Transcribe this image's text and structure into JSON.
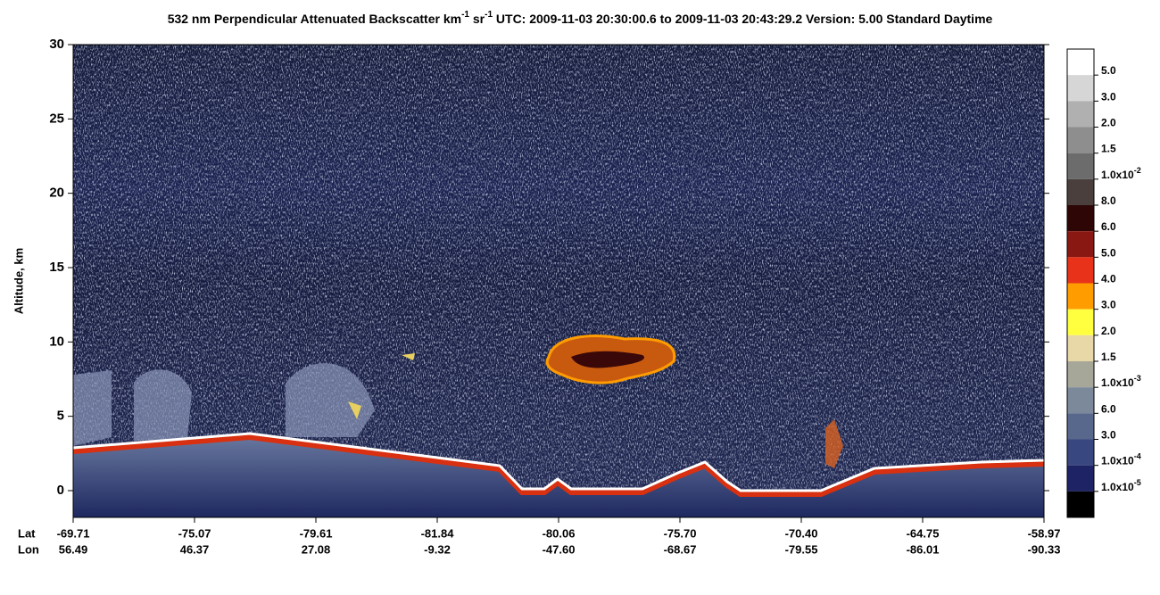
{
  "chart_data": {
    "type": "curtain",
    "title_parts": [
      {
        "text": "532 nm Perpendicular Attenuated Backscatter km"
      },
      {
        "text": "-1",
        "sup": true
      },
      {
        "text": " sr"
      },
      {
        "text": "-1",
        "sup": true
      },
      {
        "text": "  UTC: 2009-11-03 20:30:00.6 to 2009-11-03 20:43:29.2  Version: 5.00 Standard Daytime"
      }
    ],
    "y_label": "Altitude, km",
    "ylim": [
      -1.8,
      30
    ],
    "yticks": [
      0,
      5,
      10,
      15,
      20,
      25,
      30
    ],
    "x_row_labels": [
      "Lat",
      "Lon"
    ],
    "x_ticks": [
      {
        "lat": "-69.71",
        "lon": "56.49"
      },
      {
        "lat": "-75.07",
        "lon": "46.37"
      },
      {
        "lat": "-79.61",
        "lon": "27.08"
      },
      {
        "lat": "-81.84",
        "lon": "-9.32"
      },
      {
        "lat": "-80.06",
        "lon": "-47.60"
      },
      {
        "lat": "-75.70",
        "lon": "-68.67"
      },
      {
        "lat": "-70.40",
        "lon": "-79.55"
      },
      {
        "lat": "-64.75",
        "lon": "-86.01"
      },
      {
        "lat": "-58.97",
        "lon": "-90.33"
      }
    ],
    "colorbar": {
      "colors": [
        "#ffffff",
        "#d6d6d6",
        "#b0b0b0",
        "#8e8e8e",
        "#6c6c6c",
        "#4a3f3c",
        "#2e0606",
        "#8a1812",
        "#e8321a",
        "#ff9c00",
        "#ffff40",
        "#e8d8a8",
        "#a6a699",
        "#7c899a",
        "#58688c",
        "#38477f",
        "#1e2366",
        "#000000"
      ],
      "labels": [
        {
          "text": "5.0"
        },
        {
          "text": "3.0"
        },
        {
          "text": "2.0"
        },
        {
          "text": "1.5"
        },
        {
          "text": "1.0x10",
          "exp": "-2"
        },
        {
          "text": "8.0"
        },
        {
          "text": "6.0"
        },
        {
          "text": "5.0"
        },
        {
          "text": "4.0"
        },
        {
          "text": "3.0"
        },
        {
          "text": "2.0"
        },
        {
          "text": "1.5"
        },
        {
          "text": "1.0x10",
          "exp": "-3"
        },
        {
          "text": "6.0"
        },
        {
          "text": "3.0"
        },
        {
          "text": "1.0x10",
          "exp": "-4"
        },
        {
          "text": "1.0x10",
          "exp": "-5"
        }
      ]
    }
  }
}
